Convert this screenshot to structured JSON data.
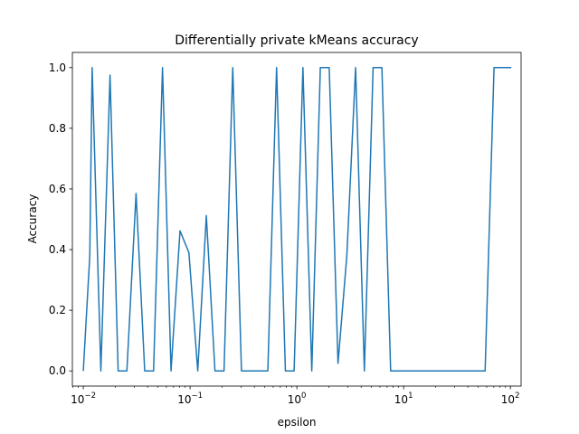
{
  "chart_data": {
    "type": "line",
    "title": "Differentially private kMeans accuracy",
    "xlabel": "epsilon",
    "ylabel": "Accuracy",
    "xscale": "log",
    "xlim": [
      0.0079,
      126
    ],
    "ylim": [
      -0.05,
      1.05
    ],
    "xticks": [
      {
        "value": 0.01,
        "base": "10",
        "exp": "−2"
      },
      {
        "value": 0.1,
        "base": "10",
        "exp": "−1"
      },
      {
        "value": 1,
        "base": "10",
        "exp": "0"
      },
      {
        "value": 10,
        "base": "10",
        "exp": "1"
      },
      {
        "value": 100,
        "base": "10",
        "exp": "2"
      }
    ],
    "yticks": [
      0.0,
      0.2,
      0.4,
      0.6,
      0.8,
      1.0
    ],
    "ytick_labels": [
      "0.0",
      "0.2",
      "0.4",
      "0.6",
      "0.8",
      "1.0"
    ],
    "grid": false,
    "legend": "none",
    "series": [
      {
        "color": "#1f77b4",
        "x": [
          0.01,
          0.0115,
          0.0121,
          0.0146,
          0.0178,
          0.0212,
          0.0256,
          0.0312,
          0.0376,
          0.0455,
          0.0552,
          0.0663,
          0.0805,
          0.0975,
          0.118,
          0.142,
          0.171,
          0.208,
          0.251,
          0.303,
          0.366,
          0.443,
          0.535,
          0.646,
          0.781,
          0.943,
          1.14,
          1.38,
          1.66,
          2.01,
          2.43,
          2.94,
          3.55,
          4.29,
          5.18,
          6.26,
          7.56,
          9.13,
          11.0,
          13.3,
          16.1,
          19.5,
          23.5,
          28.4,
          34.3,
          41.5,
          50.1,
          58.0,
          70.3,
          84.9,
          102.0
        ],
        "y": [
          0.0,
          0.38,
          1.0,
          0.0,
          0.975,
          0.0,
          0.0,
          0.585,
          0.0,
          0.0,
          1.0,
          0.0,
          0.462,
          0.39,
          0.0,
          0.512,
          0.0,
          0.0,
          1.0,
          0.0,
          0.0,
          0.0,
          0.0,
          1.0,
          0.0,
          0.0,
          1.0,
          0.0,
          1.0,
          1.0,
          0.025,
          0.38,
          1.0,
          0.0,
          1.0,
          1.0,
          0.0,
          0.0,
          0.0,
          0.0,
          0.0,
          0.0,
          0.0,
          0.0,
          0.0,
          0.0,
          0.0,
          0.0,
          1.0,
          1.0,
          1.0
        ]
      }
    ]
  }
}
